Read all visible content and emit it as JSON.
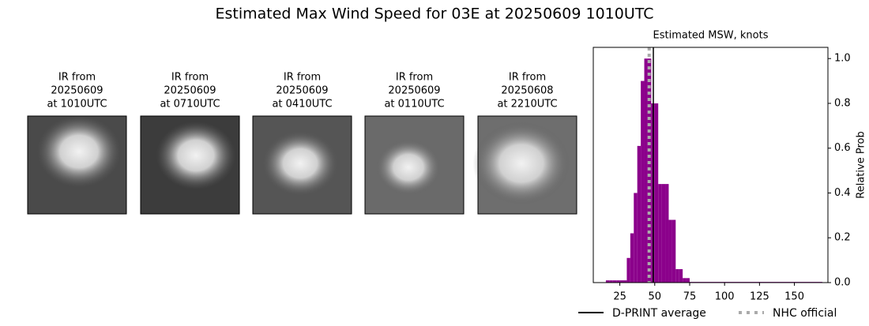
{
  "title": "Estimated Max Wind Speed for 03E at 20250609 1010UTC",
  "panels": [
    {
      "lines": [
        "IR from",
        "20250609",
        "at 1010UTC"
      ]
    },
    {
      "lines": [
        "IR from",
        "20250609",
        "at 0710UTC"
      ]
    },
    {
      "lines": [
        "IR from",
        "20250609",
        "at 0410UTC"
      ]
    },
    {
      "lines": [
        "IR from",
        "20250609",
        "at 0110UTC"
      ]
    },
    {
      "lines": [
        "IR from",
        "20250608",
        "at 2210UTC"
      ]
    }
  ],
  "chart_data": {
    "type": "histogram",
    "title": "Estimated MSW, knots",
    "ylabel": "Relative Prob",
    "color": "#8b008b",
    "bins": [
      15,
      17.5,
      20,
      22.5,
      25,
      27.5,
      30,
      32.5,
      35,
      37.5,
      40,
      42.5,
      45,
      47.5,
      50,
      52.5,
      55,
      57.5,
      60,
      62.5,
      65,
      67.5,
      70,
      72.5,
      75,
      170
    ],
    "counts": [
      0.01,
      0.01,
      0.01,
      0.01,
      0.01,
      0.01,
      0.11,
      0.22,
      0.4,
      0.61,
      0.9,
      1.0,
      1.0,
      0.8,
      0.8,
      0.44,
      0.44,
      0.44,
      0.28,
      0.28,
      0.06,
      0.06,
      0.02,
      0.02,
      0.003
    ],
    "xlim": [
      6,
      174
    ],
    "ylim": [
      0,
      1.05
    ],
    "xticks": [
      25,
      50,
      75,
      100,
      125,
      150
    ],
    "yticks": [
      {
        "value": 0,
        "label": "0.0"
      },
      {
        "value": 0.2,
        "label": "0.2"
      },
      {
        "value": 0.4,
        "label": "0.4"
      },
      {
        "value": 0.6,
        "label": "0.6"
      },
      {
        "value": 0.8,
        "label": "0.8"
      },
      {
        "value": 1.0,
        "label": "1.0"
      }
    ],
    "lines": [
      {
        "name": "D-PRINT average",
        "value": 49,
        "color": "#000000",
        "style": "solid"
      },
      {
        "name": "NHC official",
        "value": 46,
        "color": "#aaaaaa",
        "style": "dotted"
      }
    ]
  }
}
